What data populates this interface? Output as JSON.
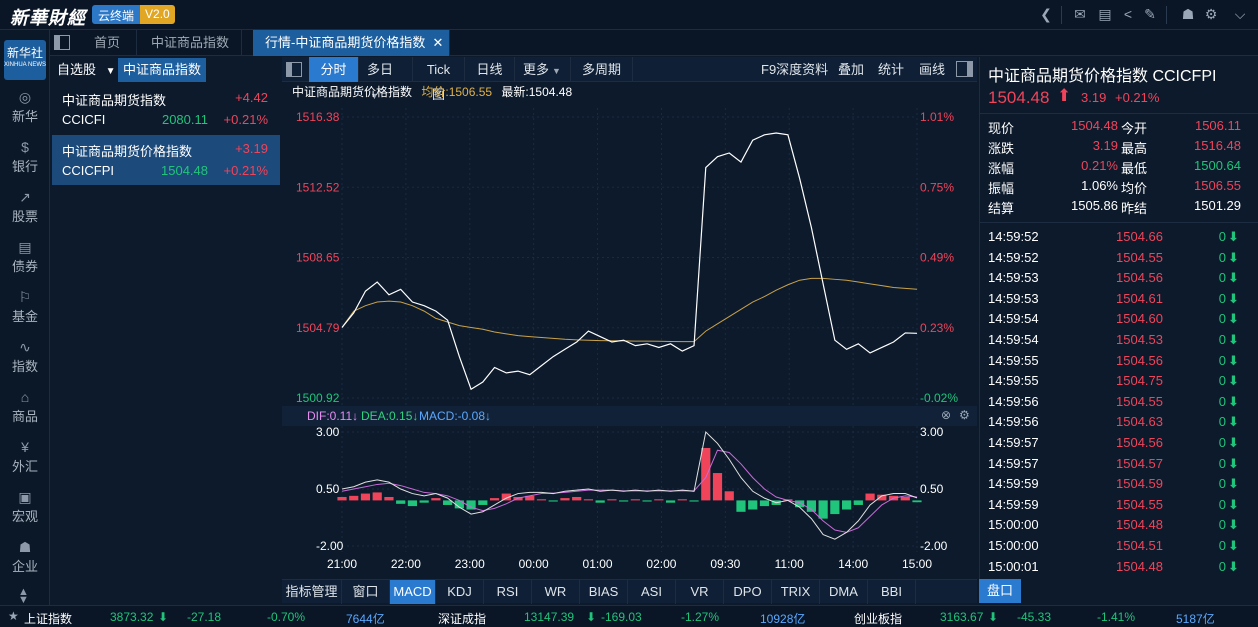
{
  "app": {
    "logo_text": "新華財經",
    "badge_name": "云终端",
    "badge_version": "V2.0",
    "nav_logo_cn": "新华社",
    "nav_logo_en": "XINHUA NEWS"
  },
  "nav": [
    {
      "label": "新华",
      "icon": "xinhua-icon",
      "glyph": "◎"
    },
    {
      "label": "银行",
      "icon": "bank-icon",
      "glyph": "$"
    },
    {
      "label": "股票",
      "icon": "stock-icon",
      "glyph": "↗"
    },
    {
      "label": "债券",
      "icon": "bond-icon",
      "glyph": "▤"
    },
    {
      "label": "基金",
      "icon": "fund-icon",
      "glyph": "⚐"
    },
    {
      "label": "指数",
      "icon": "index-icon",
      "glyph": "∿"
    },
    {
      "label": "商品",
      "icon": "commodity-icon",
      "glyph": "⌂"
    },
    {
      "label": "外汇",
      "icon": "forex-icon",
      "glyph": "¥"
    },
    {
      "label": "宏观",
      "icon": "macro-icon",
      "glyph": "▣"
    },
    {
      "label": "企业",
      "icon": "enterprise-icon",
      "glyph": "☗"
    }
  ],
  "tabs": [
    "首页",
    "中证商品指数",
    "行情-中证商品期货价格指数"
  ],
  "watchlist": {
    "dropdown_label": "自选股",
    "active_label": "中证商品指数",
    "items": [
      {
        "name": "中证商品期货指数",
        "code": "CCICFI",
        "price": "2080.11",
        "change": "+4.42",
        "pct": "+0.21%"
      },
      {
        "name": "中证商品期货价格指数",
        "code": "CCICFPI",
        "price": "1504.48",
        "change": "+3.19",
        "pct": "+0.21%"
      }
    ]
  },
  "chart_toolbar": {
    "left": [
      "分时",
      "多日",
      "Tick图",
      "日线",
      "更多",
      "多周期"
    ],
    "right": [
      "F9深度资料",
      "叠加",
      "统计",
      "画线"
    ]
  },
  "chart_header": {
    "name": "中证商品期货价格指数",
    "avg_label": "均价:1506.55",
    "last_label": "最新:1504.48"
  },
  "macd_header": {
    "dif": "DIF:0.11↓",
    "dea": "DEA:0.15↓",
    "macd": "MACD:-0.08↓"
  },
  "colors": {
    "up": "#f0445a",
    "down": "#20c47a",
    "price_line": "#ffffff",
    "avg_line": "#c9a24a",
    "dif_line": "#e0e0e0",
    "dea_line": "#c86ad8"
  },
  "chart_data": {
    "type": "line",
    "price_axis": [
      "1516.38",
      "1512.52",
      "1508.65",
      "1504.79",
      "1500.92"
    ],
    "pct_axis": [
      "1.01%",
      "0.75%",
      "0.49%",
      "0.23%",
      "-0.02%"
    ],
    "ylim": [
      1500.92,
      1516.38
    ],
    "time_labels": [
      "21:00",
      "22:00",
      "23:00",
      "00:00",
      "01:00",
      "02:00",
      "09:30",
      "11:00",
      "14:00",
      "15:00"
    ],
    "price_series": [
      1504.8,
      1505.6,
      1506.8,
      1507.3,
      1506.6,
      1506.9,
      1506.2,
      1506.0,
      1505.7,
      1505.2,
      1503.2,
      1501.4,
      1501.8,
      1502.6,
      1502.3,
      1502.4,
      1502.2,
      1502.7,
      1503.2,
      1503.6,
      1504.0,
      1504.6,
      1504.3,
      1504.0,
      1504.1,
      1503.8,
      1503.9,
      1503.7,
      1503.9,
      1503.5,
      1503.8,
      1513.6,
      1514.2,
      1514.4,
      1513.9,
      1515.1,
      1515.4,
      1515.5,
      1515.4,
      1513.0,
      1510.3,
      1507.2,
      1504.1,
      1503.6,
      1503.9,
      1503.4,
      1503.7,
      1504.0,
      1504.5,
      1504.48
    ],
    "avg_series": [
      1504.8,
      1505.7,
      1506.0,
      1506.2,
      1506.25,
      1506.2,
      1506.0,
      1505.7,
      1505.3,
      1505.1,
      1504.9,
      1504.8,
      1504.7,
      1504.55,
      1504.45,
      1504.35,
      1504.3,
      1504.25,
      1504.2,
      1504.15,
      1504.12,
      1504.1,
      1504.08,
      1504.07,
      1504.06,
      1504.05,
      1504.05,
      1504.04,
      1504.03,
      1504.02,
      1504.02,
      1504.6,
      1505.0,
      1505.4,
      1505.8,
      1506.2,
      1506.5,
      1506.85,
      1507.15,
      1507.4,
      1507.5,
      1507.5,
      1507.45,
      1507.4,
      1507.3,
      1507.2,
      1507.1,
      1507.0,
      1506.95,
      1506.9
    ],
    "macd_axis": [
      "3.00",
      "0.50",
      "-2.00"
    ],
    "macd_ylim": [
      -2.0,
      3.0
    ],
    "macd_hist": [
      0.15,
      0.2,
      0.3,
      0.35,
      0.15,
      -0.15,
      -0.25,
      -0.1,
      0.1,
      -0.2,
      -0.35,
      -0.4,
      -0.2,
      0.1,
      0.3,
      0.15,
      0.2,
      0.05,
      -0.05,
      0.1,
      0.15,
      0.05,
      -0.1,
      0.05,
      -0.05,
      0.05,
      -0.05,
      0.05,
      -0.1,
      0.05,
      -0.05,
      2.3,
      1.2,
      0.4,
      -0.5,
      -0.4,
      -0.25,
      -0.2,
      0.05,
      -0.3,
      -0.5,
      -0.8,
      -0.6,
      -0.4,
      -0.2,
      0.3,
      0.25,
      0.2,
      0.15,
      -0.08
    ],
    "dif_series": [
      0.5,
      0.6,
      0.8,
      0.9,
      0.8,
      0.5,
      0.3,
      0.2,
      0.3,
      0.1,
      -0.3,
      -0.6,
      -0.5,
      -0.2,
      0.1,
      0.3,
      0.35,
      0.35,
      0.3,
      0.4,
      0.45,
      0.5,
      0.4,
      0.45,
      0.4,
      0.45,
      0.4,
      0.45,
      0.4,
      0.45,
      0.4,
      3.0,
      2.5,
      1.8,
      1.0,
      0.4,
      0.1,
      -0.1,
      0.0,
      -0.3,
      -0.8,
      -1.5,
      -1.7,
      -1.4,
      -0.9,
      -0.2,
      0.2,
      0.3,
      0.3,
      0.11
    ],
    "dea_series": [
      0.4,
      0.5,
      0.6,
      0.7,
      0.75,
      0.65,
      0.5,
      0.35,
      0.3,
      0.2,
      0.0,
      -0.3,
      -0.45,
      -0.35,
      -0.15,
      0.1,
      0.2,
      0.3,
      0.32,
      0.35,
      0.4,
      0.45,
      0.45,
      0.45,
      0.42,
      0.42,
      0.42,
      0.42,
      0.42,
      0.42,
      0.42,
      1.0,
      2.2,
      2.1,
      1.6,
      1.0,
      0.5,
      0.15,
      0.0,
      -0.1,
      -0.4,
      -0.9,
      -1.3,
      -1.4,
      -1.2,
      -0.7,
      -0.2,
      0.1,
      0.2,
      0.15
    ]
  },
  "quote": {
    "title": "中证商品期货价格指数  CCICFPI",
    "price": "1504.48",
    "change": "3.19",
    "pct": "+0.21%",
    "rows": [
      {
        "l1": "现价",
        "v1": "1504.48",
        "c1": "up",
        "l2": "今开",
        "v2": "1506.11",
        "c2": "up"
      },
      {
        "l1": "涨跌",
        "v1": "3.19",
        "c1": "up",
        "l2": "最高",
        "v2": "1516.48",
        "c2": "up"
      },
      {
        "l1": "涨幅",
        "v1": "0.21%",
        "c1": "up",
        "l2": "最低",
        "v2": "1500.64",
        "c2": "down"
      },
      {
        "l1": "振幅",
        "v1": "1.06%",
        "c1": "plain",
        "l2": "均价",
        "v2": "1506.55",
        "c2": "up"
      },
      {
        "l1": "结算",
        "v1": "1505.86",
        "c1": "plain",
        "l2": "昨结",
        "v2": "1501.29",
        "c2": "plain"
      }
    ]
  },
  "ticks": [
    {
      "time": "14:59:52",
      "price": "1504.66",
      "vol": "0"
    },
    {
      "time": "14:59:52",
      "price": "1504.55",
      "vol": "0"
    },
    {
      "time": "14:59:53",
      "price": "1504.56",
      "vol": "0"
    },
    {
      "time": "14:59:53",
      "price": "1504.61",
      "vol": "0"
    },
    {
      "time": "14:59:54",
      "price": "1504.60",
      "vol": "0"
    },
    {
      "time": "14:59:54",
      "price": "1504.53",
      "vol": "0"
    },
    {
      "time": "14:59:55",
      "price": "1504.56",
      "vol": "0"
    },
    {
      "time": "14:59:55",
      "price": "1504.75",
      "vol": "0"
    },
    {
      "time": "14:59:56",
      "price": "1504.55",
      "vol": "0"
    },
    {
      "time": "14:59:56",
      "price": "1504.63",
      "vol": "0"
    },
    {
      "time": "14:59:57",
      "price": "1504.56",
      "vol": "0"
    },
    {
      "time": "14:59:57",
      "price": "1504.57",
      "vol": "0"
    },
    {
      "time": "14:59:59",
      "price": "1504.59",
      "vol": "0"
    },
    {
      "time": "14:59:59",
      "price": "1504.55",
      "vol": "0"
    },
    {
      "time": "15:00:00",
      "price": "1504.48",
      "vol": "0"
    },
    {
      "time": "15:00:00",
      "price": "1504.51",
      "vol": "0"
    },
    {
      "time": "15:00:01",
      "price": "1504.48",
      "vol": "0"
    }
  ],
  "indicator_tabs": [
    "指标管理",
    "窗口",
    "MACD",
    "KDJ",
    "RSI",
    "WR",
    "BIAS",
    "ASI",
    "VR",
    "DPO",
    "TRIX",
    "DMA",
    "BBI"
  ],
  "pankou_label": "盘口",
  "status_bar": [
    {
      "name": "上证指数",
      "value": "3873.32",
      "change": "-27.18",
      "pct": "-0.70%",
      "amount": "7644亿"
    },
    {
      "name": "深证成指",
      "value": "13147.39",
      "change": "-169.03",
      "pct": "-1.27%",
      "amount": "10928亿"
    },
    {
      "name": "创业板指",
      "value": "3163.67",
      "change": "-45.33",
      "pct": "-1.41%",
      "amount": "5187亿"
    }
  ]
}
